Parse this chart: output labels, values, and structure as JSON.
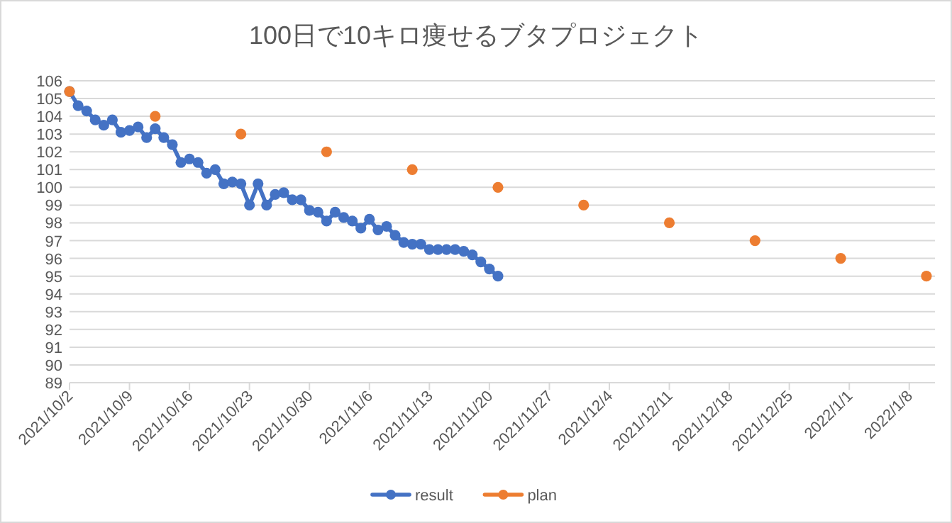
{
  "chart_data": {
    "type": "line",
    "title": "100日で10キロ痩せるブタプロジェクト",
    "xlim": [
      "2021-10-02",
      "2022-01-11"
    ],
    "ylim": [
      89,
      106
    ],
    "yticks": [
      89,
      90,
      91,
      92,
      93,
      94,
      95,
      96,
      97,
      98,
      99,
      100,
      101,
      102,
      103,
      104,
      105,
      106
    ],
    "xticks": [
      {
        "value": "2021-10-02",
        "label": "2021/10/2"
      },
      {
        "value": "2021-10-09",
        "label": "2021/10/9"
      },
      {
        "value": "2021-10-16",
        "label": "2021/10/16"
      },
      {
        "value": "2021-10-23",
        "label": "2021/10/23"
      },
      {
        "value": "2021-10-30",
        "label": "2021/10/30"
      },
      {
        "value": "2021-11-06",
        "label": "2021/11/6"
      },
      {
        "value": "2021-11-13",
        "label": "2021/11/13"
      },
      {
        "value": "2021-11-20",
        "label": "2021/11/20"
      },
      {
        "value": "2021-11-27",
        "label": "2021/11/27"
      },
      {
        "value": "2021-12-04",
        "label": "2021/12/4"
      },
      {
        "value": "2021-12-11",
        "label": "2021/12/11"
      },
      {
        "value": "2021-12-18",
        "label": "2021/12/18"
      },
      {
        "value": "2021-12-25",
        "label": "2021/12/25"
      },
      {
        "value": "2022-01-01",
        "label": "2022/1/1"
      },
      {
        "value": "2022-01-08",
        "label": "2022/1/8"
      }
    ],
    "grid": "y",
    "legend": "bottom",
    "marker": "circle",
    "line_style": "solid",
    "series": [
      {
        "name": "result",
        "color": "#4472c4",
        "x": [
          "2021-10-02",
          "2021-10-03",
          "2021-10-04",
          "2021-10-05",
          "2021-10-06",
          "2021-10-07",
          "2021-10-08",
          "2021-10-09",
          "2021-10-10",
          "2021-10-11",
          "2021-10-12",
          "2021-10-13",
          "2021-10-14",
          "2021-10-15",
          "2021-10-16",
          "2021-10-17",
          "2021-10-18",
          "2021-10-19",
          "2021-10-20",
          "2021-10-21",
          "2021-10-22",
          "2021-10-23",
          "2021-10-24",
          "2021-10-25",
          "2021-10-26",
          "2021-10-27",
          "2021-10-28",
          "2021-10-29",
          "2021-10-30",
          "2021-10-31",
          "2021-11-01",
          "2021-11-02",
          "2021-11-03",
          "2021-11-04",
          "2021-11-05",
          "2021-11-06",
          "2021-11-07",
          "2021-11-08",
          "2021-11-09",
          "2021-11-10",
          "2021-11-11",
          "2021-11-12",
          "2021-11-13",
          "2021-11-14",
          "2021-11-15",
          "2021-11-16",
          "2021-11-17",
          "2021-11-18",
          "2021-11-19",
          "2021-11-20",
          "2021-11-21"
        ],
        "values": [
          105.4,
          104.6,
          104.3,
          103.8,
          103.5,
          103.8,
          103.1,
          103.2,
          103.4,
          102.8,
          103.3,
          102.8,
          102.4,
          101.4,
          101.6,
          101.4,
          100.8,
          101.0,
          100.2,
          100.3,
          100.2,
          99.0,
          100.2,
          99.0,
          99.6,
          99.7,
          99.3,
          99.3,
          98.7,
          98.6,
          98.1,
          98.6,
          98.3,
          98.1,
          97.7,
          98.2,
          97.6,
          97.8,
          97.3,
          96.9,
          96.8,
          96.8,
          96.5,
          96.5,
          96.5,
          96.5,
          96.4,
          96.2,
          95.8,
          95.4,
          95.0
        ]
      },
      {
        "name": "plan",
        "type": "scatter",
        "color": "#ed7d31",
        "x": [
          "2021-10-02",
          "2021-10-12",
          "2021-10-22",
          "2021-11-01",
          "2021-11-11",
          "2021-11-21",
          "2021-12-01",
          "2021-12-11",
          "2021-12-21",
          "2021-12-31",
          "2022-01-10"
        ],
        "values": [
          105.4,
          104,
          103,
          102,
          101,
          100,
          99,
          98,
          97,
          96,
          95
        ]
      }
    ]
  }
}
